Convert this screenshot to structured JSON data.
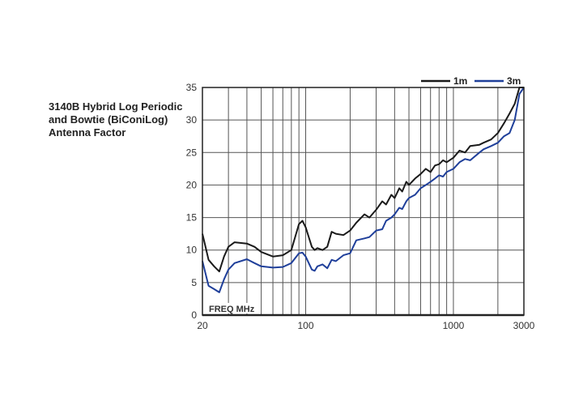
{
  "chart_data": {
    "type": "line",
    "title": [
      "3140B Hybrid Log Periodic",
      "and Bowtie (BiConiLog)",
      "Antenna Factor"
    ],
    "xlabel": "FREQ MHz",
    "ylabel": "",
    "xscale": "log",
    "xlim": [
      20,
      3000
    ],
    "ylim": [
      0,
      35
    ],
    "xticks": [
      20,
      100,
      1000,
      3000
    ],
    "xtick_labels": [
      "20",
      "100",
      "1000",
      "3000"
    ],
    "yticks": [
      0,
      5,
      10,
      15,
      20,
      25,
      30,
      35
    ],
    "ytick_labels": [
      "0",
      "5",
      "10",
      "15",
      "20",
      "25",
      "30",
      "35"
    ],
    "grid": true,
    "legend_position": "top-right",
    "series": [
      {
        "name": "1m",
        "color": "#1a1a1a",
        "x": [
          20,
          22,
          24,
          26,
          28,
          30,
          33,
          40,
          45,
          50,
          60,
          70,
          80,
          90,
          95,
          100,
          110,
          115,
          120,
          130,
          140,
          150,
          160,
          180,
          200,
          220,
          250,
          270,
          300,
          330,
          350,
          380,
          400,
          430,
          450,
          480,
          500,
          550,
          600,
          650,
          700,
          750,
          800,
          850,
          900,
          1000,
          1100,
          1200,
          1300,
          1500,
          1600,
          1800,
          2000,
          2200,
          2400,
          2600,
          2800,
          3000
        ],
        "y": [
          12.5,
          8.5,
          7.5,
          6.7,
          9,
          10.5,
          11.2,
          11,
          10.5,
          9.7,
          9,
          9.2,
          10,
          14,
          14.5,
          13.5,
          10.5,
          10,
          10.3,
          10,
          10.5,
          12.8,
          12.5,
          12.3,
          13,
          14.2,
          15.5,
          15,
          16.2,
          17.5,
          17,
          18.5,
          18,
          19.5,
          19,
          20.5,
          20,
          21,
          21.7,
          22.5,
          22,
          23,
          23.2,
          23.8,
          23.5,
          24.2,
          25.3,
          25,
          26,
          26.2,
          26.5,
          27,
          28,
          29.5,
          31,
          32.5,
          35,
          35
        ]
      },
      {
        "name": "3m",
        "color": "#1f3f9a",
        "x": [
          20,
          22,
          24,
          26,
          28,
          30,
          33,
          40,
          45,
          50,
          60,
          70,
          80,
          90,
          95,
          100,
          110,
          115,
          120,
          130,
          140,
          150,
          160,
          180,
          200,
          220,
          250,
          270,
          300,
          330,
          350,
          380,
          400,
          430,
          450,
          480,
          500,
          550,
          600,
          650,
          700,
          750,
          800,
          850,
          900,
          1000,
          1100,
          1200,
          1300,
          1500,
          1600,
          1800,
          2000,
          2200,
          2400,
          2600,
          2800,
          3000
        ],
        "y": [
          8.3,
          4.5,
          4,
          3.5,
          5.5,
          7,
          8,
          8.6,
          8,
          7.5,
          7.3,
          7.4,
          8,
          9.5,
          9.6,
          9,
          7,
          6.8,
          7.5,
          7.8,
          7.2,
          8.5,
          8.3,
          9.2,
          9.5,
          11.5,
          11.8,
          12,
          13,
          13.2,
          14.5,
          15,
          15.5,
          16.5,
          16.3,
          17.5,
          18,
          18.5,
          19.5,
          20,
          20.5,
          21,
          21.5,
          21.3,
          22,
          22.5,
          23.5,
          24,
          23.8,
          25,
          25.5,
          26,
          26.5,
          27.5,
          28,
          30,
          34,
          35
        ]
      }
    ]
  }
}
